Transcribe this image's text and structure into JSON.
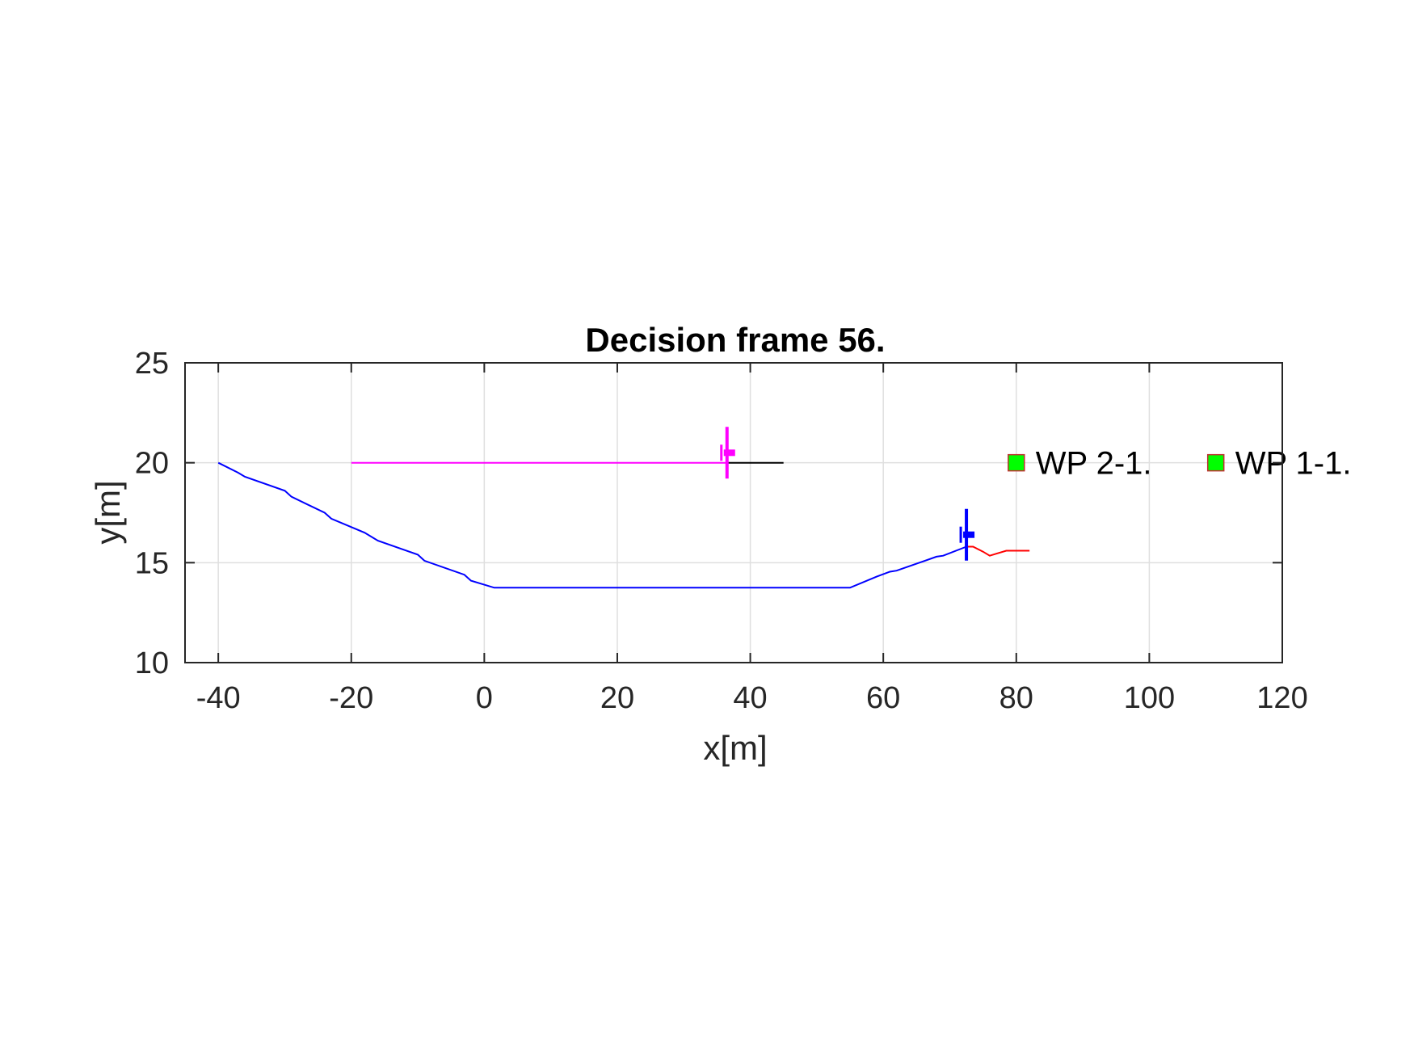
{
  "chart_data": {
    "type": "line",
    "title": "Decision frame 56.",
    "xlabel": "x[m]",
    "ylabel": "y[m]",
    "xlim": [
      -45,
      120
    ],
    "ylim": [
      10,
      25
    ],
    "xticks": [
      -40,
      -20,
      0,
      20,
      40,
      60,
      80,
      100,
      120
    ],
    "yticks": [
      10,
      15,
      20,
      25
    ],
    "xtick_labels": [
      "-40",
      "-20",
      "0",
      "20",
      "40",
      "60",
      "80",
      "100",
      "120"
    ],
    "ytick_labels": [
      "10",
      "15",
      "20",
      "25"
    ],
    "grid": true,
    "series": [
      {
        "color": "#0000ff",
        "x": [
          -40,
          -37,
          -36,
          -30,
          -29,
          -24,
          -23,
          -18,
          -16,
          -10,
          -9,
          -3,
          -2,
          1.5,
          55,
          59,
          61,
          62,
          65,
          68,
          69,
          72.5
        ],
        "y": [
          20,
          19.5,
          19.3,
          18.6,
          18.3,
          17.5,
          17.2,
          16.5,
          16.1,
          15.4,
          15.1,
          14.4,
          14.1,
          13.75,
          13.75,
          14.3,
          14.55,
          14.6,
          14.95,
          15.3,
          15.35,
          15.8
        ]
      },
      {
        "color": "#ff00ff",
        "x": [
          -20,
          36.5
        ],
        "y": [
          20,
          20
        ]
      },
      {
        "color": "#000000",
        "x": [
          36.5,
          45
        ],
        "y": [
          20,
          20
        ]
      },
      {
        "color": "#ff0000",
        "x": [
          72.5,
          73.5,
          75,
          76,
          77,
          78.5,
          80,
          82
        ],
        "y": [
          15.8,
          15.8,
          15.55,
          15.35,
          15.45,
          15.6,
          15.6,
          15.6
        ]
      }
    ],
    "vehicles": [
      {
        "color": "#ff00ff",
        "x": 36.5,
        "y": 20.5
      },
      {
        "color": "#0000ff",
        "x": 72.5,
        "y": 16.4
      }
    ],
    "waypoints": [
      {
        "label": "WP 2-1.",
        "x": 80,
        "y": 20,
        "color": "#00ff00"
      },
      {
        "label": "WP 1-1.",
        "x": 110,
        "y": 20,
        "color": "#00ff00"
      }
    ]
  }
}
